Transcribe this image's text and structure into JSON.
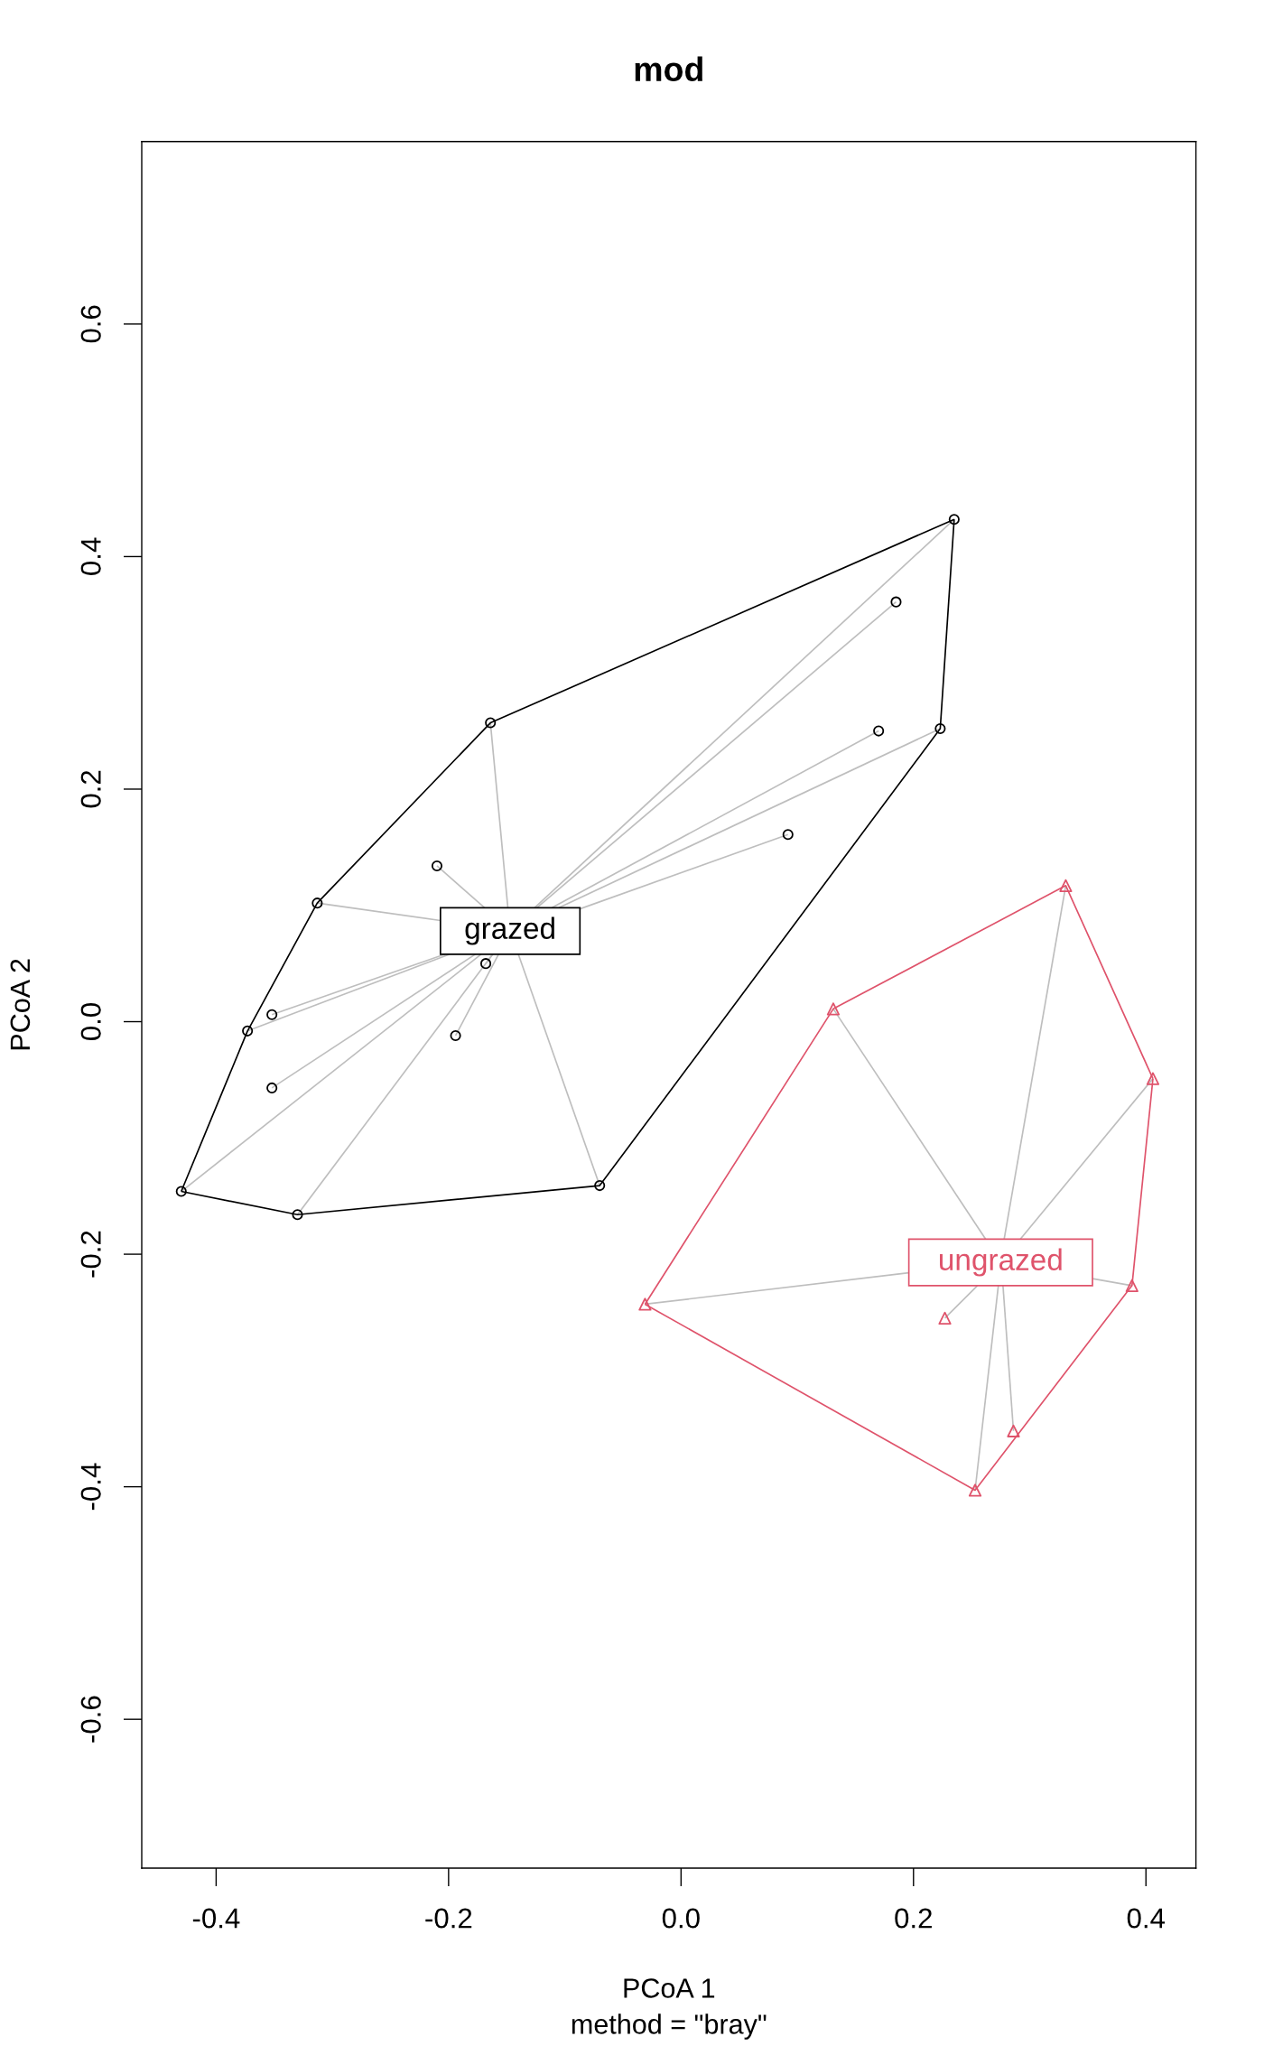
{
  "chart_data": {
    "type": "scatter",
    "title": "mod",
    "subtitle": "method = \"bray\"",
    "xlabel": "PCoA 1",
    "ylabel": "PCoA 2",
    "xlim": [
      -0.464,
      0.443
    ],
    "ylim": [
      -0.728,
      0.757
    ],
    "xticks": [
      -0.4,
      -0.2,
      {
        "value": 0,
        "label": "0.0"
      },
      0.2,
      0.4
    ],
    "yticks": [
      -0.6,
      -0.4,
      -0.2,
      {
        "value": 0,
        "label": "0.0"
      },
      0.2,
      0.4,
      0.6
    ],
    "series": [
      {
        "type": "line",
        "color": "#bebebe",
        "x": [
          -0.164,
          -0.149
        ],
        "values": [
          0.257,
          0.098
        ]
      },
      {
        "type": "line",
        "color": "#bebebe",
        "x": [
          -0.21,
          -0.169
        ],
        "values": [
          0.134,
          0.098
        ]
      },
      {
        "type": "line",
        "color": "#bebebe",
        "x": [
          -0.313,
          -0.207
        ],
        "values": [
          0.102,
          0.087
        ]
      },
      {
        "type": "line",
        "color": "#bebebe",
        "x": [
          -0.352,
          -0.203
        ],
        "values": [
          0.006,
          0.058
        ]
      },
      {
        "type": "line",
        "color": "#bebebe",
        "x": [
          -0.373,
          -0.199
        ],
        "values": [
          -0.008,
          0.058
        ]
      },
      {
        "type": "line",
        "color": "#bebebe",
        "x": [
          -0.352,
          -0.177
        ],
        "values": [
          -0.057,
          0.058
        ]
      },
      {
        "type": "line",
        "color": "#bebebe",
        "x": [
          -0.43,
          -0.172
        ],
        "values": [
          -0.146,
          0.058
        ]
      },
      {
        "type": "line",
        "color": "#bebebe",
        "x": [
          -0.33,
          -0.162
        ],
        "values": [
          -0.166,
          0.058
        ]
      },
      {
        "type": "line",
        "color": "#bebebe",
        "x": [
          -0.14,
          -0.07
        ],
        "values": [
          0.058,
          -0.141
        ]
      },
      {
        "type": "line",
        "color": "#bebebe",
        "x": [
          -0.168,
          -0.162
        ],
        "values": [
          0.05,
          0.058
        ]
      },
      {
        "type": "line",
        "color": "#bebebe",
        "x": [
          -0.194,
          -0.157
        ],
        "values": [
          -0.012,
          0.058
        ]
      },
      {
        "type": "line",
        "color": "#bebebe",
        "x": [
          -0.126,
          0.235
        ],
        "values": [
          0.098,
          0.432
        ]
      },
      {
        "type": "line",
        "color": "#bebebe",
        "x": [
          -0.124,
          0.185
        ],
        "values": [
          0.098,
          0.361
        ]
      },
      {
        "type": "line",
        "color": "#bebebe",
        "x": [
          -0.111,
          0.17
        ],
        "values": [
          0.098,
          0.25
        ]
      },
      {
        "type": "line",
        "color": "#bebebe",
        "x": [
          -0.105,
          0.223
        ],
        "values": [
          0.098,
          0.252
        ]
      },
      {
        "type": "line",
        "color": "#bebebe",
        "x": [
          -0.087,
          0.092
        ],
        "values": [
          0.097,
          0.161
        ]
      },
      {
        "type": "line",
        "color": "#bebebe",
        "x": [
          0.278,
          0.331
        ],
        "values": [
          -0.187,
          0.117
        ]
      },
      {
        "type": "line",
        "color": "#bebebe",
        "x": [
          0.131,
          0.262
        ],
        "values": [
          0.011,
          -0.187
        ]
      },
      {
        "type": "line",
        "color": "#bebebe",
        "x": [
          0.292,
          0.406
        ],
        "values": [
          -0.187,
          -0.049
        ]
      },
      {
        "type": "line",
        "color": "#bebebe",
        "x": [
          -0.031,
          0.196
        ],
        "values": [
          -0.243,
          -0.216
        ]
      },
      {
        "type": "line",
        "color": "#bebebe",
        "x": [
          0.354,
          0.388
        ],
        "values": [
          -0.221,
          -0.227
        ]
      },
      {
        "type": "line",
        "color": "#bebebe",
        "x": [
          0.227,
          0.255
        ],
        "values": [
          -0.255,
          -0.227
        ]
      },
      {
        "type": "line",
        "color": "#bebebe",
        "x": [
          0.277,
          0.286
        ],
        "values": [
          -0.227,
          -0.352
        ]
      },
      {
        "type": "line",
        "color": "#bebebe",
        "x": [
          0.253,
          0.273
        ],
        "values": [
          -0.403,
          -0.227
        ]
      },
      {
        "type": "line",
        "color": "#000000",
        "x": [
          -0.43,
          -0.373,
          -0.313,
          -0.164,
          0.235
        ],
        "values": [
          -0.146,
          -0.008,
          0.102,
          0.257,
          0.432
        ]
      },
      {
        "type": "line",
        "color": "#000000",
        "x": [
          -0.43,
          -0.33,
          -0.07,
          0.223,
          0.235
        ],
        "values": [
          -0.146,
          -0.166,
          -0.141,
          0.252,
          0.432
        ]
      },
      {
        "type": "line",
        "color": "#df536b",
        "x": [
          -0.031,
          0.131,
          0.331,
          0.406
        ],
        "values": [
          -0.243,
          0.011,
          0.117,
          -0.049
        ]
      },
      {
        "type": "line",
        "color": "#df536b",
        "x": [
          -0.031,
          0.253,
          0.388,
          0.406
        ],
        "values": [
          -0.243,
          -0.403,
          -0.227,
          -0.049
        ]
      },
      {
        "color": "#000000",
        "marker": "circle",
        "x": [
          -0.164,
          -0.21,
          -0.313,
          -0.352,
          -0.373,
          -0.352,
          -0.43,
          -0.33,
          -0.07,
          -0.168,
          -0.194,
          0.235,
          0.185,
          0.17,
          0.223,
          0.092
        ],
        "values": [
          0.257,
          0.134,
          0.102,
          0.006,
          -0.008,
          -0.057,
          -0.146,
          -0.166,
          -0.141,
          0.05,
          -0.012,
          0.432,
          0.361,
          0.25,
          0.252,
          0.161
        ]
      },
      {
        "color": "#df536b",
        "marker": "triangle",
        "x": [
          0.331,
          0.131,
          0.406,
          -0.031,
          0.388,
          0.227,
          0.286,
          0.253
        ],
        "values": [
          0.117,
          0.011,
          -0.049,
          -0.243,
          -0.227,
          -0.255,
          -0.352,
          -0.403
        ]
      }
    ],
    "annotations": [
      "grazed",
      "ungrazed"
    ]
  }
}
